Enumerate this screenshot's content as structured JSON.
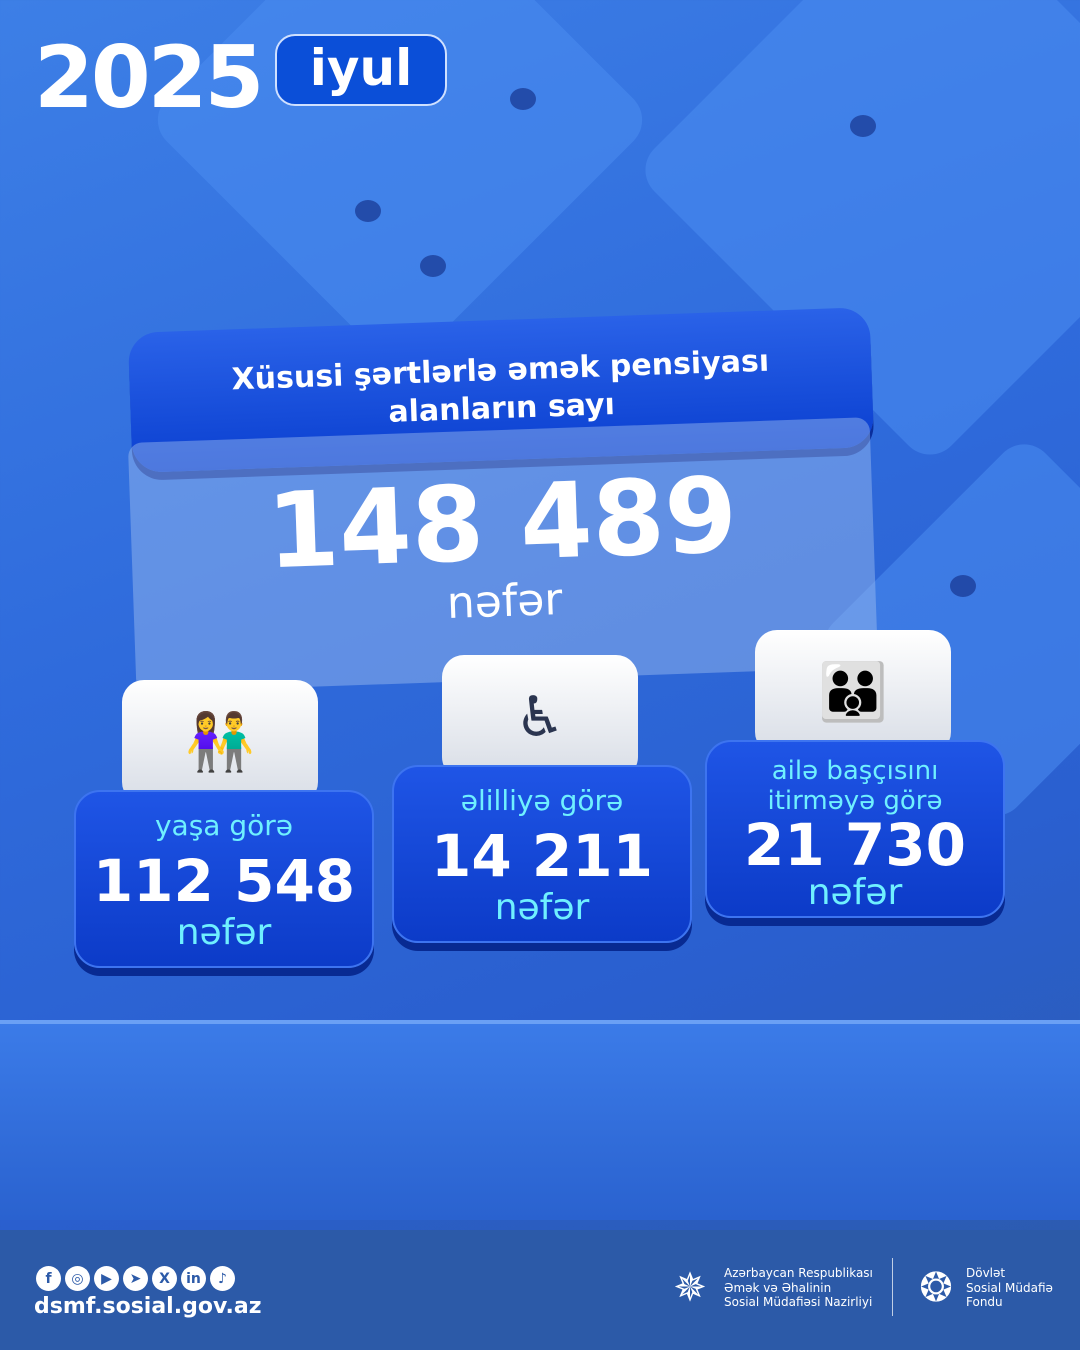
{
  "header": {
    "year": "2025",
    "month": "iyul"
  },
  "title": {
    "line1": "Xüsusi şərtlərlə əmək pensiyası",
    "line2": "alanların sayı"
  },
  "total": {
    "value": "148 489",
    "unit": "nəfər"
  },
  "categories": [
    {
      "label": "yaşa görə",
      "value": "112 548",
      "unit": "nəfər",
      "icon": "elderly-couple-icon"
    },
    {
      "label": "əlilliyə görə",
      "value": "14 211",
      "unit": "nəfər",
      "icon": "wheelchair-icon"
    },
    {
      "label": "ailə başçısını itirməyə görə",
      "value": "21 730",
      "unit": "nəfər",
      "icon": "family-icon"
    }
  ],
  "footer": {
    "social": [
      "facebook",
      "instagram",
      "youtube",
      "telegram",
      "x",
      "linkedin",
      "tiktok"
    ],
    "website": "dsmf.sosial.gov.az",
    "ministry": {
      "line1": "Azərbaycan Respublikası",
      "line2": "Əmək və Əhalinin",
      "line3": "Sosial Müdafiəsi Nazirliyi"
    },
    "fund": {
      "line1": "Dövlət",
      "line2": "Sosial Müdafiə",
      "line3": "Fondu"
    }
  },
  "colors": {
    "background": "#2f6bdc",
    "accent": "#6ff0ff",
    "card": "#0c3bc8"
  }
}
